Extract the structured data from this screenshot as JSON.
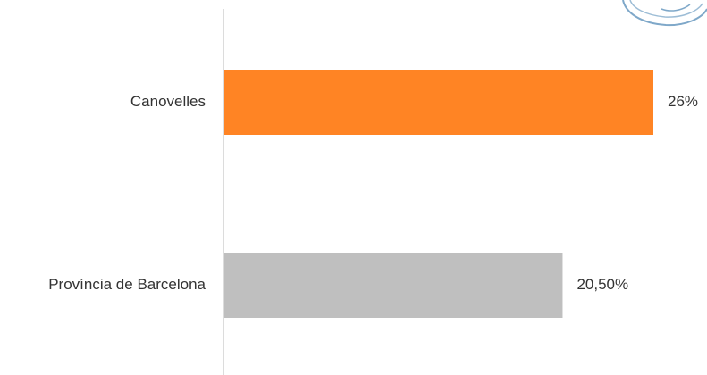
{
  "chart_data": {
    "type": "bar",
    "orientation": "horizontal",
    "categories": [
      "Canovelles",
      "Província de Barcelona"
    ],
    "values": [
      26,
      20.5
    ],
    "value_labels": [
      "26%",
      "20,50%"
    ],
    "colors": [
      "#FF8424",
      "#BFBFBF"
    ],
    "xlim": [
      0,
      26
    ],
    "grid": false,
    "legend": false
  },
  "logo": {
    "icon": "circular-emblem-icon",
    "color": "#7FA8C9"
  }
}
